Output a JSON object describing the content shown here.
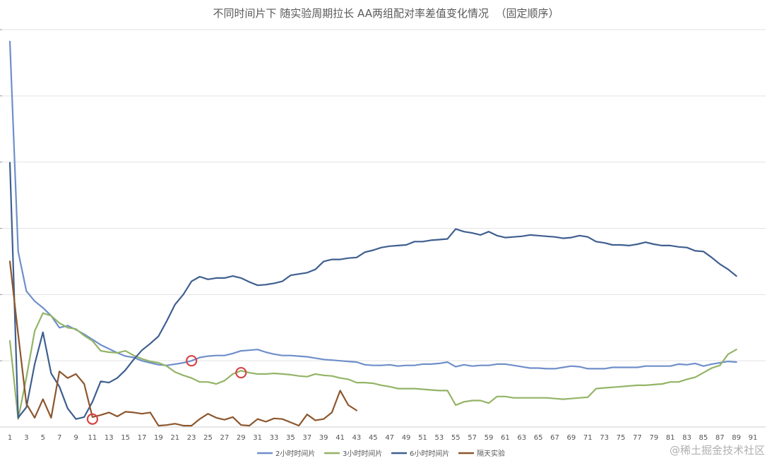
{
  "chart_data": {
    "type": "line",
    "title": "不同时间片下 随实验周期拉长 AA两组配对率差值变化情况  （固定顺序）",
    "xlabel": "",
    "ylabel": "",
    "x_ticks": [
      "1",
      "3",
      "5",
      "7",
      "9",
      "11",
      "13",
      "15",
      "17",
      "19",
      "21",
      "23",
      "25",
      "27",
      "29",
      "31",
      "33",
      "35",
      "37",
      "39",
      "41",
      "43",
      "45",
      "47",
      "49",
      "51",
      "53",
      "55",
      "57",
      "59",
      "61",
      "63",
      "65",
      "67",
      "69",
      "71",
      "73",
      "75",
      "77",
      "79",
      "81",
      "83",
      "85",
      "87",
      "89",
      "91"
    ],
    "xlim": [
      1,
      91
    ],
    "ylim": [
      0,
      6
    ],
    "grid": true,
    "legend_position": "bottom",
    "series": [
      {
        "name": "2小时时间片",
        "color": "#6f8fca",
        "x": [
          1,
          2,
          3,
          4,
          5,
          6,
          7,
          8,
          9,
          10,
          11,
          12,
          13,
          14,
          15,
          16,
          17,
          18,
          19,
          20,
          21,
          22,
          23,
          24,
          25,
          26,
          27,
          28,
          29,
          30,
          31,
          32,
          33,
          34,
          35,
          36,
          37,
          38,
          39,
          40,
          41,
          42,
          43,
          44,
          45,
          46,
          47,
          48,
          49,
          50,
          51,
          52,
          53,
          54,
          55,
          56,
          57,
          58,
          59,
          60,
          61,
          62,
          63,
          64,
          65,
          66,
          67,
          68,
          69,
          70,
          71,
          72,
          73,
          74,
          75,
          76,
          77,
          78,
          79,
          80,
          81,
          82,
          83,
          84,
          85,
          86,
          87,
          88,
          89
        ],
        "values": [
          5.82,
          2.65,
          2.05,
          1.9,
          1.8,
          1.68,
          1.5,
          1.53,
          1.47,
          1.4,
          1.32,
          1.24,
          1.18,
          1.12,
          1.07,
          1.05,
          1.0,
          0.97,
          0.94,
          0.93,
          0.95,
          0.97,
          1.0,
          1.05,
          1.07,
          1.08,
          1.08,
          1.11,
          1.15,
          1.16,
          1.17,
          1.13,
          1.1,
          1.08,
          1.08,
          1.07,
          1.06,
          1.04,
          1.02,
          1.01,
          1.0,
          0.99,
          0.98,
          0.94,
          0.93,
          0.93,
          0.94,
          0.92,
          0.93,
          0.93,
          0.95,
          0.95,
          0.96,
          0.98,
          0.91,
          0.94,
          0.92,
          0.93,
          0.93,
          0.95,
          0.95,
          0.93,
          0.91,
          0.89,
          0.89,
          0.88,
          0.88,
          0.9,
          0.92,
          0.91,
          0.88,
          0.88,
          0.88,
          0.9,
          0.9,
          0.9,
          0.9,
          0.92,
          0.92,
          0.92,
          0.92,
          0.95,
          0.94,
          0.96,
          0.92,
          0.95,
          0.97,
          0.99,
          0.98
        ]
      },
      {
        "name": "3小时时间片",
        "color": "#93b466",
        "x": [
          1,
          2,
          3,
          4,
          5,
          6,
          7,
          8,
          9,
          10,
          11,
          12,
          13,
          14,
          15,
          16,
          17,
          18,
          19,
          20,
          21,
          22,
          23,
          24,
          25,
          26,
          27,
          28,
          29,
          30,
          31,
          32,
          33,
          34,
          35,
          36,
          37,
          38,
          39,
          40,
          41,
          42,
          43,
          44,
          45,
          46,
          47,
          48,
          49,
          50,
          51,
          52,
          53,
          54,
          55,
          56,
          57,
          58,
          59,
          60,
          61,
          62,
          63,
          64,
          65,
          66,
          67,
          68,
          69,
          70,
          71,
          72,
          73,
          74,
          75,
          76,
          77,
          78,
          79,
          80,
          81,
          82,
          83,
          84,
          85,
          86,
          87,
          88,
          89
        ],
        "values": [
          1.3,
          0.12,
          0.75,
          1.45,
          1.72,
          1.68,
          1.57,
          1.5,
          1.48,
          1.38,
          1.3,
          1.15,
          1.13,
          1.12,
          1.15,
          1.08,
          1.03,
          0.99,
          0.97,
          0.92,
          0.83,
          0.78,
          0.74,
          0.68,
          0.68,
          0.65,
          0.7,
          0.8,
          0.85,
          0.82,
          0.8,
          0.8,
          0.81,
          0.8,
          0.79,
          0.77,
          0.76,
          0.8,
          0.78,
          0.77,
          0.74,
          0.72,
          0.67,
          0.67,
          0.66,
          0.63,
          0.61,
          0.58,
          0.58,
          0.58,
          0.57,
          0.56,
          0.55,
          0.55,
          0.33,
          0.38,
          0.4,
          0.4,
          0.36,
          0.46,
          0.46,
          0.44,
          0.44,
          0.44,
          0.44,
          0.44,
          0.43,
          0.42,
          0.43,
          0.44,
          0.45,
          0.58,
          0.59,
          0.6,
          0.61,
          0.62,
          0.63,
          0.63,
          0.64,
          0.65,
          0.68,
          0.68,
          0.72,
          0.75,
          0.82,
          0.89,
          0.93,
          1.1,
          1.17
        ]
      },
      {
        "name": "6小时时间片",
        "color": "#3f5f8f",
        "x": [
          1,
          2,
          3,
          4,
          5,
          6,
          7,
          8,
          9,
          10,
          11,
          12,
          13,
          14,
          15,
          16,
          17,
          18,
          19,
          20,
          21,
          22,
          23,
          24,
          25,
          26,
          27,
          28,
          29,
          30,
          31,
          32,
          33,
          34,
          35,
          36,
          37,
          38,
          39,
          40,
          41,
          42,
          43,
          44,
          45,
          46,
          47,
          48,
          49,
          50,
          51,
          52,
          53,
          54,
          55,
          56,
          57,
          58,
          59,
          60,
          61,
          62,
          63,
          64,
          65,
          66,
          67,
          68,
          69,
          70,
          71,
          72,
          73,
          74,
          75,
          76,
          77,
          78,
          79,
          80,
          81,
          82,
          83,
          84,
          85,
          86,
          87,
          88,
          89
        ],
        "values": [
          3.99,
          0.14,
          0.3,
          0.95,
          1.43,
          0.81,
          0.61,
          0.28,
          0.12,
          0.15,
          0.38,
          0.69,
          0.67,
          0.74,
          0.86,
          1.02,
          1.16,
          1.26,
          1.37,
          1.6,
          1.85,
          2.0,
          2.2,
          2.27,
          2.23,
          2.25,
          2.25,
          2.28,
          2.25,
          2.19,
          2.14,
          2.15,
          2.17,
          2.2,
          2.29,
          2.31,
          2.33,
          2.38,
          2.5,
          2.53,
          2.53,
          2.55,
          2.56,
          2.64,
          2.67,
          2.71,
          2.73,
          2.74,
          2.75,
          2.8,
          2.8,
          2.82,
          2.83,
          2.84,
          2.99,
          2.95,
          2.93,
          2.9,
          2.95,
          2.89,
          2.86,
          2.87,
          2.88,
          2.9,
          2.89,
          2.88,
          2.87,
          2.85,
          2.86,
          2.89,
          2.87,
          2.8,
          2.78,
          2.75,
          2.75,
          2.74,
          2.76,
          2.79,
          2.76,
          2.74,
          2.74,
          2.72,
          2.71,
          2.66,
          2.65,
          2.56,
          2.46,
          2.38,
          2.28
        ]
      },
      {
        "name": "隔天实验",
        "color": "#8d562d",
        "x": [
          1,
          2,
          3,
          4,
          5,
          6,
          7,
          8,
          9,
          10,
          11,
          12,
          13,
          14,
          15,
          16,
          17,
          18,
          19,
          20,
          21,
          22,
          23,
          24,
          25,
          26,
          27,
          28,
          29,
          30,
          31,
          32,
          33,
          34,
          35,
          36,
          37,
          38,
          39,
          40,
          41,
          42,
          43
        ],
        "values": [
          2.5,
          1.4,
          0.35,
          0.14,
          0.42,
          0.14,
          0.84,
          0.74,
          0.8,
          0.65,
          0.15,
          0.18,
          0.22,
          0.16,
          0.23,
          0.22,
          0.2,
          0.22,
          0.02,
          0.03,
          0.05,
          0.02,
          0.02,
          0.12,
          0.2,
          0.14,
          0.11,
          0.15,
          0.03,
          0.02,
          0.12,
          0.08,
          0.13,
          0.12,
          0.07,
          0.02,
          0.19,
          0.1,
          0.12,
          0.22,
          0.55,
          0.33,
          0.25
        ]
      }
    ],
    "highlight_markers": [
      {
        "x": 11,
        "y": 0.12,
        "color": "#d64545"
      },
      {
        "x": 23,
        "y": 1.0,
        "color": "#d64545"
      },
      {
        "x": 29,
        "y": 0.82,
        "color": "#d64545"
      }
    ]
  },
  "watermark": "@稀土掘金技术社区"
}
